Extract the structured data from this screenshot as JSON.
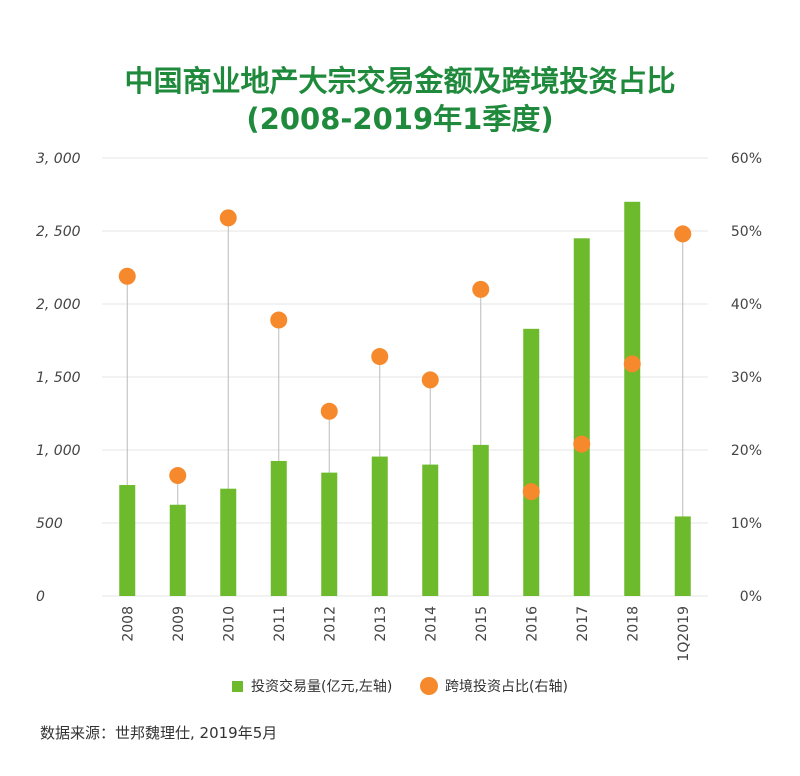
{
  "title_line1": "中国商业地产大宗交易金额及跨境投资占比",
  "title_line2": "(2008-2019年1季度)",
  "legend": {
    "bar_label": "投资交易量(亿元,左轴)",
    "dot_label": "跨境投资占比(右轴)"
  },
  "source": "数据来源：世邦魏理仕, 2019年5月",
  "colors": {
    "bar": "#6dba2c",
    "dot": "#f5892c",
    "title": "#1f8a3c",
    "stem": "#bbbbbb",
    "grid": "#e6e6e6"
  },
  "chart_data": {
    "type": "bar",
    "categories": [
      "2008",
      "2009",
      "2010",
      "2011",
      "2012",
      "2013",
      "2014",
      "2015",
      "2016",
      "2017",
      "2018",
      "1Q2019"
    ],
    "series": [
      {
        "name": "投资交易量(亿元,左轴)",
        "type": "bar",
        "axis": "left",
        "values": [
          760,
          625,
          735,
          925,
          845,
          955,
          900,
          1035,
          1830,
          2450,
          2700,
          545
        ]
      },
      {
        "name": "跨境投资占比(右轴)",
        "type": "scatter",
        "axis": "right",
        "values": [
          43.8,
          16.5,
          51.8,
          37.8,
          25.3,
          32.8,
          29.6,
          42.0,
          14.3,
          20.8,
          31.8,
          49.6
        ]
      }
    ],
    "left_axis": {
      "ylim": [
        0,
        3000
      ],
      "ticks": [
        0,
        500,
        1000,
        1500,
        2000,
        2500,
        3000
      ],
      "tick_labels": [
        "0",
        "500",
        "1, 000",
        "1, 500",
        "2, 000",
        "2, 500",
        "3, 000"
      ]
    },
    "right_axis": {
      "ylim": [
        0,
        60
      ],
      "ticks": [
        0,
        10,
        20,
        30,
        40,
        50,
        60
      ],
      "tick_labels": [
        "0%",
        "10%",
        "20%",
        "30%",
        "40%",
        "50%",
        "60%"
      ]
    },
    "grid": true,
    "legend_position": "bottom"
  }
}
